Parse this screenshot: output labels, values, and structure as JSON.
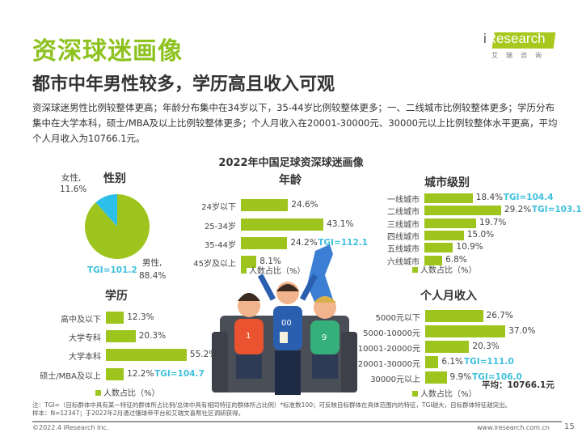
{
  "header": {
    "title": "资深球迷画像",
    "subtitle": "都市中年男性较多，学历高且收入可观",
    "description": "资深球迷男性比例较整体更高；年龄分布集中在34岁以下，35-44岁比例较整体更多；一、二线城市比例较整体更多；学历分布集中在大学本科，硕士/MBA及以上比例较整体更多；个人月收入在20001-30000元、30000元以上比例较整体水平更高，平均个人月收入为10766.1元。"
  },
  "logo": {
    "brand": "iResearch",
    "cn": "艾瑞咨询"
  },
  "main_title": "2022年中国足球资深球迷画像",
  "colors": {
    "green": "#9dc51d",
    "cyan": "#2bbfea",
    "tgi": "#3fc0dc",
    "title_green": "#8dc21f"
  },
  "chart_data": [
    {
      "id": "gender",
      "type": "pie",
      "title": "性别",
      "slices": [
        {
          "label": "女性,",
          "value": 11.6,
          "display": "11.6%"
        },
        {
          "label": "男性,",
          "value": 88.4,
          "display": "88.4%"
        }
      ],
      "tgi": "TGI=101.2"
    },
    {
      "id": "age",
      "type": "bar",
      "title": "年龄",
      "legend": "人数占比（%）",
      "categories": [
        "24岁以下",
        "25-34岁",
        "35-44岁",
        "45岁及以上"
      ],
      "values": [
        24.6,
        43.1,
        24.2,
        8.1
      ],
      "tgi": [
        null,
        null,
        "TGI=112.1",
        null
      ]
    },
    {
      "id": "city",
      "type": "bar",
      "title": "城市级别",
      "legend": "人数占比（%）",
      "categories": [
        "一线城市",
        "二线城市",
        "三线城市",
        "四线城市",
        "五线城市",
        "六线城市"
      ],
      "values": [
        18.4,
        29.2,
        19.7,
        15.0,
        10.9,
        6.8
      ],
      "tgi": [
        "TGI=104.4",
        "TGI=103.1",
        null,
        null,
        null,
        null
      ]
    },
    {
      "id": "education",
      "type": "bar",
      "title": "学历",
      "legend": "人数占比（%）",
      "categories": [
        "高中及以下",
        "大学专科",
        "大学本科",
        "硕士/MBA及以上"
      ],
      "values": [
        12.3,
        20.3,
        55.2,
        12.2
      ],
      "tgi": [
        null,
        null,
        null,
        "TGI=104.7"
      ]
    },
    {
      "id": "income",
      "type": "bar",
      "title": "个人月收入",
      "legend": "人数占比（%）",
      "categories": [
        "5000元以下",
        "5000-10000元",
        "10001-20000元",
        "20001-30000元",
        "30000元以上"
      ],
      "values": [
        26.7,
        37.0,
        20.3,
        6.1,
        9.9
      ],
      "tgi": [
        null,
        null,
        null,
        "TGI=111.0",
        "TGI=106.0"
      ],
      "annotation": "平均：10766.1元"
    }
  ],
  "footer": {
    "note_line1": "注：TGI=（目标群体中具有某一特征的群体所占比例/总体中具有相同特征的群体所占比例）*标准数100；可反映目标群体在具体范围内的特征，TGI越大，目标群体特征越突出。",
    "note_line2": "样本：N=12347；于2022年2月通过懂球帝平台和艾瑞文喜帮社区调研获得。",
    "copyright": "©2022.4 iResearch Inc.",
    "website": "www.iresearch.com.cn",
    "page": "15"
  }
}
